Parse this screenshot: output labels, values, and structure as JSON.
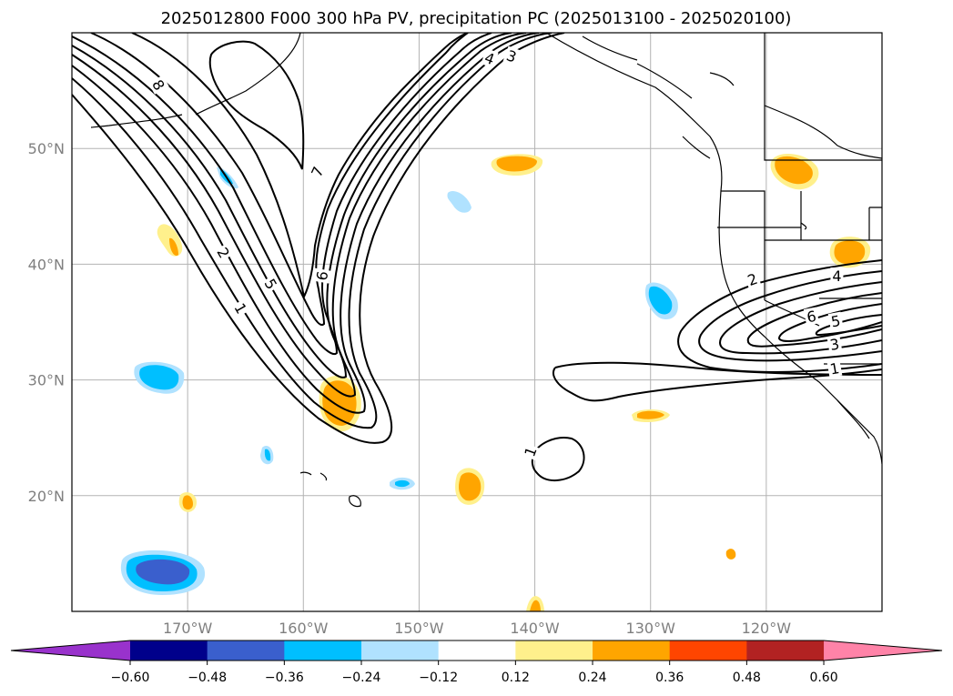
{
  "chart_data": {
    "type": "contour",
    "title": "2025012800 F000 300 hPa PV, precipitation PC (2025013100 - 2025020100)",
    "xlim": [
      -180,
      -110
    ],
    "ylim": [
      10,
      60
    ],
    "x_ticks": [
      {
        "value": -170,
        "label": "170°W"
      },
      {
        "value": -160,
        "label": "160°W"
      },
      {
        "value": -150,
        "label": "150°W"
      },
      {
        "value": -140,
        "label": "140°W"
      },
      {
        "value": -130,
        "label": "130°W"
      },
      {
        "value": -120,
        "label": "120°W"
      }
    ],
    "y_ticks": [
      {
        "value": 20,
        "label": "20°N"
      },
      {
        "value": 30,
        "label": "30°N"
      },
      {
        "value": 40,
        "label": "40°N"
      },
      {
        "value": 50,
        "label": "50°N"
      }
    ],
    "grid": true,
    "pv_contour_labels": [
      {
        "text": "8",
        "lon": -172.5,
        "lat": 55.5,
        "rot": 60
      },
      {
        "text": "7",
        "lon": -158.8,
        "lat": 48.0,
        "rot": -65
      },
      {
        "text": "6",
        "lon": -158.4,
        "lat": 39.0,
        "rot": -80
      },
      {
        "text": "5",
        "lon": -162.8,
        "lat": 38.3,
        "rot": 60
      },
      {
        "text": "2",
        "lon": -166.9,
        "lat": 41.0,
        "rot": 60
      },
      {
        "text": "1",
        "lon": -165.4,
        "lat": 36.2,
        "rot": 60
      },
      {
        "text": "4",
        "lon": -143.9,
        "lat": 57.8,
        "rot": 20
      },
      {
        "text": "3",
        "lon": -142.0,
        "lat": 58.0,
        "rot": 20
      },
      {
        "text": "1",
        "lon": -140.4,
        "lat": 23.8,
        "rot": -70
      },
      {
        "text": "2",
        "lon": -121.2,
        "lat": 38.7,
        "rot": -20
      },
      {
        "text": "4",
        "lon": -113.9,
        "lat": 39.0,
        "rot": 0
      },
      {
        "text": "6",
        "lon": -116.1,
        "lat": 35.5,
        "rot": -10
      },
      {
        "text": "5",
        "lon": -114.0,
        "lat": 35.1,
        "rot": -10
      },
      {
        "text": "3",
        "lon": -114.1,
        "lat": 33.1,
        "rot": -10
      },
      {
        "text": "1",
        "lon": -114.1,
        "lat": 31.0,
        "rot": -10
      }
    ],
    "colorbar": {
      "ticks": [
        "−0.60",
        "−0.48",
        "−0.36",
        "−0.24",
        "−0.12",
        "0.12",
        "0.24",
        "0.36",
        "0.48",
        "0.60"
      ],
      "colors": [
        "#9932cc",
        "#00008b",
        "#3a5fcd",
        "#00bfff",
        "#b0e2ff",
        "#ffffff",
        "#fff08c",
        "#ffa500",
        "#ff4500",
        "#b22222",
        "#ff83a8"
      ]
    }
  }
}
